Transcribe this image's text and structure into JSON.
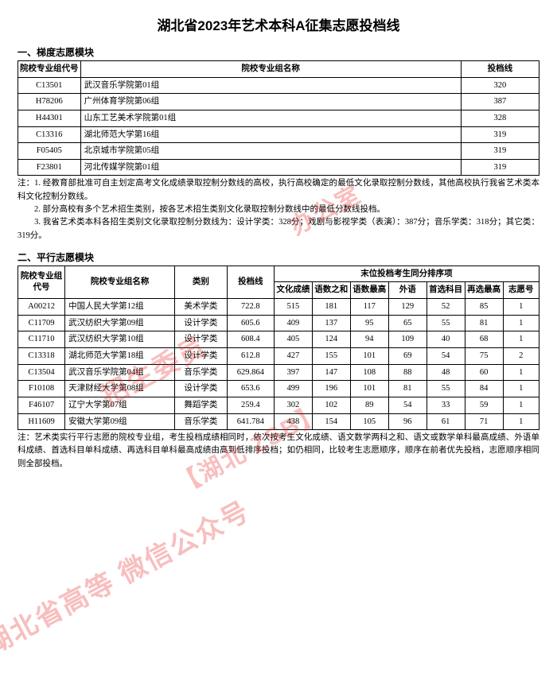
{
  "title": "湖北省2023年艺术本科A征集志愿投档线",
  "section1": {
    "header": "一、梯度志愿模块",
    "columns": [
      "院校专业组代号",
      "院校专业组名称",
      "投档线"
    ],
    "rows": [
      [
        "C13501",
        "武汉音乐学院第01组",
        "320"
      ],
      [
        "H78206",
        "广州体育学院第06组",
        "387"
      ],
      [
        "H44301",
        "山东工艺美术学院第01组",
        "328"
      ],
      [
        "C13316",
        "湖北师范大学第16组",
        "319"
      ],
      [
        "F05405",
        "北京城市学院第05组",
        "319"
      ],
      [
        "F23801",
        "河北传媒学院第01组",
        "319"
      ]
    ],
    "notes": [
      "注：1. 经教育部批准可自主划定高考文化成绩录取控制分数线的高校，执行高校确定的最低文化录取控制分数线，其他高校执行我省艺术类本科文化控制分数线。",
      "　　2. 部分高校有多个艺术招生类别，按各艺术招生类别文化录取控制分数线中的最低分数线投档。",
      "　　3. 我省艺术类本科各招生类别文化录取控制分数线为：设计学类：328分；戏剧与影视学类（表演）：387分；音乐学类：318分；其它类：319分。"
    ]
  },
  "section2": {
    "header": "二、平行志愿模块",
    "group_header": "末位投档考生同分排序项",
    "columns": [
      "院校专业组代号",
      "院校专业组名称",
      "类别",
      "投档线",
      "文化成绩",
      "语数之和",
      "语数最高",
      "外语",
      "首选科目",
      "再选最高",
      "志愿号"
    ],
    "rows": [
      [
        "A00212",
        "中国人民大学第12组",
        "美术学类",
        "722.8",
        "515",
        "181",
        "117",
        "129",
        "52",
        "85",
        "1"
      ],
      [
        "C11709",
        "武汉纺织大学第09组",
        "设计学类",
        "605.6",
        "409",
        "137",
        "95",
        "65",
        "55",
        "81",
        "1"
      ],
      [
        "C11710",
        "武汉纺织大学第10组",
        "设计学类",
        "608.4",
        "405",
        "124",
        "94",
        "109",
        "40",
        "68",
        "1"
      ],
      [
        "C13318",
        "湖北师范大学第18组",
        "设计学类",
        "612.8",
        "427",
        "155",
        "101",
        "69",
        "54",
        "75",
        "2"
      ],
      [
        "C13504",
        "武汉音乐学院第04组",
        "音乐学类",
        "629.864",
        "397",
        "147",
        "108",
        "88",
        "48",
        "60",
        "1"
      ],
      [
        "F10108",
        "天津财经大学第08组",
        "设计学类",
        "653.6",
        "499",
        "196",
        "101",
        "81",
        "55",
        "84",
        "1"
      ],
      [
        "F46107",
        "辽宁大学第07组",
        "舞蹈学类",
        "259.4",
        "302",
        "102",
        "89",
        "54",
        "33",
        "59",
        "1"
      ],
      [
        "H11609",
        "安徽大学第09组",
        "音乐学类",
        "641.784",
        "438",
        "154",
        "105",
        "96",
        "61",
        "71",
        "1"
      ]
    ],
    "notes": [
      "注：艺术类实行平行志愿的院校专业组，考生投档成绩相同时，依次按考生文化成绩、语文数学两科之和、语文或数学单科最高成绩、外语单科成绩、首选科目单科成绩、再选科目单科最高成绩由高到低排序投档；如仍相同，比较考生志愿顺序，顺序在前者优先投档，志愿顺序相同则全部投档。"
    ]
  },
  "watermarks": {
    "wm1": "办公室",
    "wm2": "招生委员",
    "wm3": "湖北省高等 微信公众号",
    "wm4": "【湖北 ZSB】"
  },
  "style": {
    "col_widths_t1": [
      "12%",
      "73%",
      "15%"
    ],
    "col_widths_t2": [
      "9%",
      "21%",
      "10%",
      "9%",
      "7.3%",
      "7.3%",
      "7.3%",
      "7.3%",
      "7.3%",
      "7.3%",
      "6.9%"
    ]
  }
}
